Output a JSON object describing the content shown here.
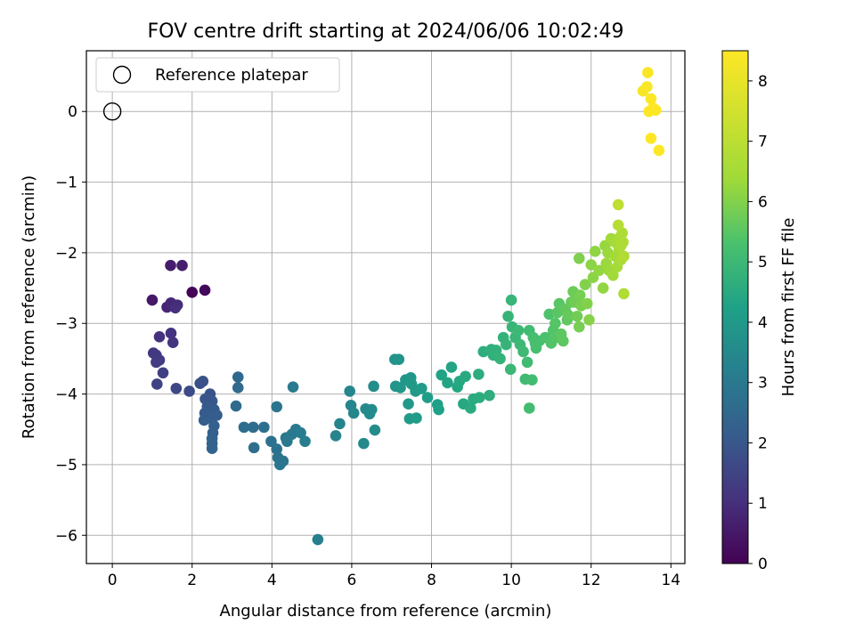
{
  "chart_data": {
    "type": "scatter",
    "title": "FOV centre drift starting at 2024/06/06 10:02:49",
    "xlabel": "Angular distance from reference (arcmin)",
    "ylabel": "Rotation from reference (arcmin)",
    "xlim": [
      -0.65,
      14.35
    ],
    "ylim": [
      -6.4,
      0.86
    ],
    "xticks": [
      0,
      2,
      4,
      6,
      8,
      10,
      12,
      14
    ],
    "yticks": [
      0,
      -1,
      -2,
      -3,
      -4,
      -5,
      -6
    ],
    "grid": true,
    "legend": {
      "placement": "top-left",
      "entries": [
        {
          "label": "Reference platepar",
          "marker": "open-circle"
        }
      ]
    },
    "reference_point": {
      "x": 0,
      "y": 0
    },
    "colorbar": {
      "label": "Hours from first FF file",
      "colormap": "viridis",
      "range": [
        0,
        8.5
      ],
      "ticks": [
        0,
        1,
        2,
        3,
        4,
        5,
        6,
        7,
        8
      ]
    },
    "series": [
      {
        "points": [
          [
            2.0,
            -2.56,
            0.05
          ],
          [
            2.32,
            -2.53,
            0.15
          ],
          [
            1.0,
            -2.67,
            0.5
          ],
          [
            1.46,
            -2.18,
            0.6
          ],
          [
            1.75,
            -2.18,
            0.65
          ],
          [
            1.37,
            -2.77,
            0.8
          ],
          [
            1.47,
            -2.71,
            0.85
          ],
          [
            1.63,
            -2.74,
            0.9
          ],
          [
            1.58,
            -2.78,
            1.0
          ],
          [
            1.18,
            -3.19,
            1.05
          ],
          [
            1.47,
            -3.14,
            1.1
          ],
          [
            1.52,
            -3.27,
            1.15
          ],
          [
            1.03,
            -3.42,
            1.2
          ],
          [
            1.1,
            -3.45,
            1.25
          ],
          [
            1.18,
            -3.52,
            1.3
          ],
          [
            1.1,
            -3.55,
            1.35
          ],
          [
            1.27,
            -3.7,
            1.4
          ],
          [
            1.12,
            -3.86,
            1.5
          ],
          [
            1.6,
            -3.92,
            1.6
          ],
          [
            1.93,
            -3.96,
            1.7
          ],
          [
            2.2,
            -3.85,
            1.8
          ],
          [
            2.27,
            -3.82,
            1.85
          ],
          [
            2.45,
            -4.0,
            1.9
          ],
          [
            2.33,
            -4.07,
            1.95
          ],
          [
            2.5,
            -4.1,
            2.0
          ],
          [
            2.38,
            -4.18,
            2.05
          ],
          [
            2.55,
            -4.22,
            2.1
          ],
          [
            2.32,
            -4.27,
            2.1
          ],
          [
            2.62,
            -4.3,
            2.15
          ],
          [
            2.45,
            -4.34,
            2.2
          ],
          [
            2.3,
            -4.37,
            2.2
          ],
          [
            2.55,
            -4.45,
            2.25
          ],
          [
            2.52,
            -4.55,
            2.25
          ],
          [
            2.5,
            -4.63,
            2.3
          ],
          [
            2.5,
            -4.7,
            2.3
          ],
          [
            2.5,
            -4.77,
            2.35
          ],
          [
            3.15,
            -3.76,
            2.5
          ],
          [
            3.15,
            -3.91,
            2.55
          ],
          [
            3.1,
            -4.17,
            2.55
          ],
          [
            3.3,
            -4.47,
            2.6
          ],
          [
            3.53,
            -4.47,
            2.65
          ],
          [
            3.55,
            -4.76,
            2.65
          ],
          [
            3.8,
            -4.47,
            2.7
          ],
          [
            3.98,
            -4.67,
            2.75
          ],
          [
            4.12,
            -4.78,
            2.8
          ],
          [
            4.12,
            -4.18,
            2.85
          ],
          [
            4.15,
            -4.9,
            2.85
          ],
          [
            4.2,
            -5.0,
            2.9
          ],
          [
            4.28,
            -4.95,
            2.9
          ],
          [
            4.35,
            -4.62,
            2.95
          ],
          [
            4.38,
            -4.67,
            3.0
          ],
          [
            4.5,
            -4.57,
            3.0
          ],
          [
            4.6,
            -4.5,
            3.05
          ],
          [
            4.53,
            -3.9,
            3.05
          ],
          [
            4.72,
            -4.55,
            3.1
          ],
          [
            4.83,
            -4.67,
            3.15
          ],
          [
            5.15,
            -6.06,
            3.2
          ],
          [
            5.6,
            -4.59,
            3.35
          ],
          [
            5.7,
            -4.42,
            3.35
          ],
          [
            5.95,
            -3.96,
            3.4
          ],
          [
            5.98,
            -4.16,
            3.4
          ],
          [
            6.05,
            -4.27,
            3.45
          ],
          [
            6.3,
            -4.7,
            3.5
          ],
          [
            6.35,
            -4.21,
            3.5
          ],
          [
            6.5,
            -4.22,
            3.55
          ],
          [
            6.45,
            -4.28,
            3.55
          ],
          [
            6.55,
            -3.89,
            3.6
          ],
          [
            6.58,
            -4.51,
            3.6
          ],
          [
            7.08,
            -3.51,
            3.8
          ],
          [
            7.18,
            -3.51,
            3.85
          ],
          [
            7.1,
            -3.89,
            3.85
          ],
          [
            7.22,
            -3.91,
            3.9
          ],
          [
            7.35,
            -3.8,
            3.9
          ],
          [
            7.48,
            -3.77,
            3.95
          ],
          [
            7.5,
            -3.86,
            4.0
          ],
          [
            7.42,
            -4.14,
            4.0
          ],
          [
            7.45,
            -4.35,
            4.05
          ],
          [
            7.6,
            -3.96,
            4.05
          ],
          [
            7.62,
            -4.34,
            4.1
          ],
          [
            7.75,
            -3.92,
            4.1
          ],
          [
            7.9,
            -4.05,
            4.15
          ],
          [
            8.15,
            -4.15,
            4.2
          ],
          [
            8.18,
            -4.22,
            4.25
          ],
          [
            8.25,
            -3.73,
            4.3
          ],
          [
            8.4,
            -3.84,
            4.35
          ],
          [
            8.5,
            -3.62,
            4.35
          ],
          [
            8.65,
            -3.9,
            4.4
          ],
          [
            8.7,
            -3.82,
            4.45
          ],
          [
            8.8,
            -4.14,
            4.45
          ],
          [
            8.85,
            -3.75,
            4.5
          ],
          [
            8.98,
            -4.2,
            4.55
          ],
          [
            9.05,
            -4.07,
            4.55
          ],
          [
            9.18,
            -3.72,
            4.6
          ],
          [
            9.2,
            -4.05,
            4.6
          ],
          [
            9.3,
            -3.4,
            4.65
          ],
          [
            9.45,
            -4.02,
            4.65
          ],
          [
            9.5,
            -3.37,
            4.7
          ],
          [
            9.55,
            -3.45,
            4.75
          ],
          [
            9.62,
            -3.38,
            4.75
          ],
          [
            9.72,
            -3.5,
            4.8
          ],
          [
            9.8,
            -3.2,
            4.8
          ],
          [
            9.87,
            -3.3,
            4.85
          ],
          [
            9.92,
            -2.9,
            4.85
          ],
          [
            10.0,
            -2.67,
            4.9
          ],
          [
            10.02,
            -3.05,
            4.9
          ],
          [
            9.98,
            -3.65,
            4.95
          ],
          [
            10.1,
            -3.2,
            4.95
          ],
          [
            10.18,
            -3.1,
            5.0
          ],
          [
            10.22,
            -3.3,
            5.0
          ],
          [
            10.3,
            -3.4,
            5.05
          ],
          [
            10.35,
            -3.79,
            5.05
          ],
          [
            10.4,
            -3.55,
            5.1
          ],
          [
            10.45,
            -3.1,
            5.1
          ],
          [
            10.45,
            -4.2,
            5.15
          ],
          [
            10.52,
            -3.8,
            5.15
          ],
          [
            10.55,
            -3.2,
            5.2
          ],
          [
            10.6,
            -3.28,
            5.2
          ],
          [
            10.62,
            -3.35,
            5.25
          ],
          [
            10.7,
            -3.25,
            5.25
          ],
          [
            10.85,
            -3.2,
            5.3
          ],
          [
            10.95,
            -2.87,
            5.35
          ],
          [
            11.0,
            -3.28,
            5.4
          ],
          [
            11.05,
            -3.1,
            5.4
          ],
          [
            11.1,
            -3.0,
            5.45
          ],
          [
            11.12,
            -3.2,
            5.45
          ],
          [
            11.15,
            -2.85,
            5.5
          ],
          [
            11.2,
            -2.72,
            5.5
          ],
          [
            11.25,
            -3.15,
            5.55
          ],
          [
            11.3,
            -3.25,
            5.55
          ],
          [
            11.35,
            -2.8,
            5.6
          ],
          [
            11.4,
            -2.95,
            5.6
          ],
          [
            11.42,
            -2.88,
            5.65
          ],
          [
            11.5,
            -2.7,
            5.7
          ],
          [
            11.55,
            -2.55,
            5.75
          ],
          [
            11.6,
            -2.7,
            5.8
          ],
          [
            11.65,
            -2.9,
            5.8
          ],
          [
            11.7,
            -3.05,
            5.85
          ],
          [
            11.72,
            -2.6,
            5.85
          ],
          [
            11.75,
            -2.75,
            5.9
          ],
          [
            11.7,
            -2.08,
            5.95
          ],
          [
            11.85,
            -2.45,
            6.0
          ],
          [
            11.9,
            -2.72,
            6.0
          ],
          [
            11.95,
            -2.95,
            6.05
          ],
          [
            12.0,
            -2.17,
            6.1
          ],
          [
            12.05,
            -2.35,
            6.1
          ],
          [
            12.1,
            -1.98,
            6.15
          ],
          [
            12.2,
            -2.25,
            6.2
          ],
          [
            12.3,
            -2.5,
            6.2
          ],
          [
            12.35,
            -1.9,
            6.25
          ],
          [
            12.38,
            -2.15,
            6.3
          ],
          [
            12.42,
            -2.0,
            6.3
          ],
          [
            12.45,
            -2.25,
            6.35
          ],
          [
            12.5,
            -1.8,
            6.4
          ],
          [
            12.55,
            -2.32,
            6.4
          ],
          [
            12.6,
            -2.05,
            6.45
          ],
          [
            12.6,
            -1.85,
            6.5
          ],
          [
            12.65,
            -2.2,
            6.5
          ],
          [
            12.7,
            -1.95,
            6.55
          ],
          [
            12.72,
            -1.78,
            6.6
          ],
          [
            12.75,
            -2.1,
            6.6
          ],
          [
            12.75,
            -1.9,
            6.65
          ],
          [
            12.78,
            -1.72,
            6.7
          ],
          [
            12.8,
            -1.85,
            6.7
          ],
          [
            12.82,
            -2.05,
            6.75
          ],
          [
            12.82,
            -2.58,
            6.75
          ],
          [
            12.68,
            -1.61,
            6.9
          ],
          [
            12.68,
            -1.32,
            7.05
          ],
          [
            13.3,
            0.29,
            8.35
          ],
          [
            13.4,
            0.35,
            8.4
          ],
          [
            13.42,
            0.55,
            8.4
          ],
          [
            13.45,
            0.0,
            8.45
          ],
          [
            13.5,
            0.18,
            8.45
          ],
          [
            13.5,
            -0.38,
            8.5
          ],
          [
            13.55,
            0.05,
            8.5
          ],
          [
            13.62,
            0.02,
            8.5
          ],
          [
            13.7,
            -0.55,
            8.5
          ]
        ]
      }
    ]
  }
}
